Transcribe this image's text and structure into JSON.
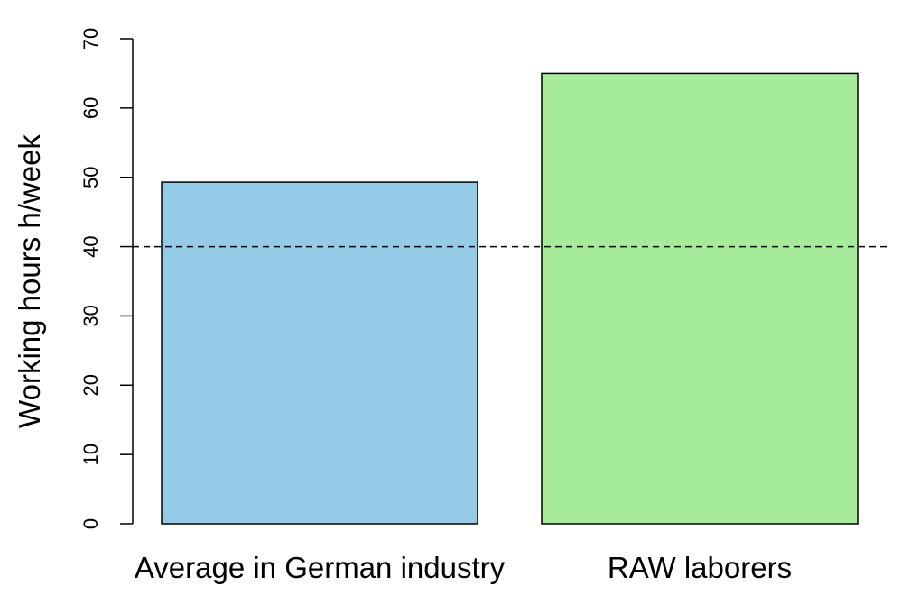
{
  "chart_data": {
    "type": "bar",
    "categories": [
      "Average in German industry",
      "RAW laborers"
    ],
    "values": [
      49.3,
      65
    ],
    "colors": [
      "#95cbe7",
      "#a6eb9a"
    ],
    "ylabel": "Working hours h/week",
    "ylim": [
      0,
      70
    ],
    "yticks": [
      "0",
      "10",
      "20",
      "30",
      "40",
      "50",
      "60",
      "70"
    ],
    "reference_line": {
      "y": 40,
      "style": "dashed"
    },
    "grid": false,
    "legend": "none"
  }
}
